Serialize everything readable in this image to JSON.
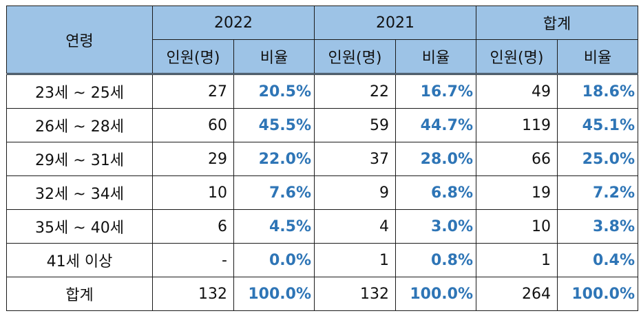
{
  "header": {
    "age_label": "연령",
    "groups": [
      "2022",
      "2021",
      "합계"
    ],
    "sub_count": "인원(명)",
    "sub_ratio": "비율"
  },
  "rows": [
    {
      "label": "23세 ~ 25세",
      "c2022": "27",
      "r2022": "20.5%",
      "c2021": "22",
      "r2021": "16.7%",
      "ct": "49",
      "rt": "18.6%"
    },
    {
      "label": "26세 ~ 28세",
      "c2022": "60",
      "r2022": "45.5%",
      "c2021": "59",
      "r2021": "44.7%",
      "ct": "119",
      "rt": "45.1%"
    },
    {
      "label": "29세 ~ 31세",
      "c2022": "29",
      "r2022": "22.0%",
      "c2021": "37",
      "r2021": "28.0%",
      "ct": "66",
      "rt": "25.0%"
    },
    {
      "label": "32세 ~ 34세",
      "c2022": "10",
      "r2022": "7.6%",
      "c2021": "9",
      "r2021": "6.8%",
      "ct": "19",
      "rt": "7.2%"
    },
    {
      "label": "35세 ~ 40세",
      "c2022": "6",
      "r2022": "4.5%",
      "c2021": "4",
      "r2021": "3.0%",
      "ct": "10",
      "rt": "3.8%"
    },
    {
      "label": "41세 이상",
      "c2022": "-",
      "r2022": "0.0%",
      "c2021": "1",
      "r2021": "0.8%",
      "ct": "1",
      "rt": "0.4%"
    },
    {
      "label": "합계",
      "c2022": "132",
      "r2022": "100.0%",
      "c2021": "132",
      "r2021": "100.0%",
      "ct": "264",
      "rt": "100.0%"
    }
  ],
  "colors": {
    "header_bg": "#9dc3e6",
    "ratio_text": "#2e75b6"
  }
}
